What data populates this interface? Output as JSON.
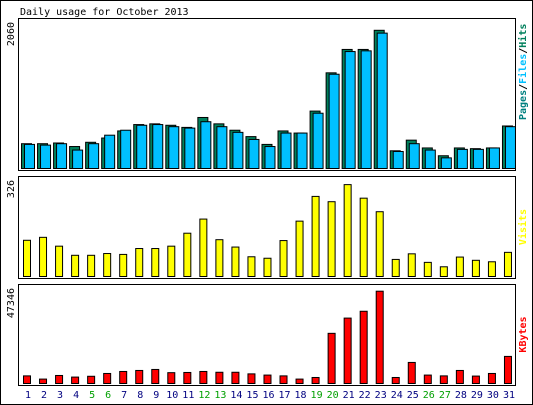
{
  "chart_data": [
    {
      "type": "bar",
      "title": "Daily usage for October 2013",
      "categories": [
        "1",
        "2",
        "3",
        "4",
        "5",
        "6",
        "7",
        "8",
        "9",
        "10",
        "11",
        "12",
        "13",
        "14",
        "15",
        "16",
        "17",
        "18",
        "19",
        "20",
        "21",
        "22",
        "23",
        "24",
        "25",
        "26",
        "27",
        "28",
        "29",
        "30",
        "31"
      ],
      "weekend_days": [
        "5",
        "6",
        "12",
        "13",
        "19",
        "20",
        "26",
        "27"
      ],
      "ymax_label": "2060",
      "ylim": [
        0,
        2060
      ],
      "right_label_parts": [
        "Pages",
        "/",
        "Files",
        "/",
        "Hits"
      ],
      "series": [
        {
          "name": "Hits",
          "color": "#00805c",
          "values": [
            350,
            350,
            360,
            310,
            370,
            430,
            530,
            620,
            630,
            610,
            580,
            720,
            630,
            540,
            450,
            340,
            530,
            500,
            810,
            1350,
            1680,
            1680,
            1950,
            250,
            400,
            290,
            180,
            290,
            280,
            290,
            600
          ]
        },
        {
          "name": "Files",
          "color": "#00c0ff",
          "values": [
            340,
            330,
            350,
            260,
            350,
            470,
            540,
            610,
            620,
            590,
            570,
            660,
            590,
            510,
            410,
            310,
            500,
            500,
            780,
            1330,
            1650,
            1660,
            1910,
            240,
            350,
            260,
            150,
            270,
            270,
            290,
            590
          ]
        }
      ]
    },
    {
      "type": "bar",
      "categories": [
        "1",
        "2",
        "3",
        "4",
        "5",
        "6",
        "7",
        "8",
        "9",
        "10",
        "11",
        "12",
        "13",
        "14",
        "15",
        "16",
        "17",
        "18",
        "19",
        "20",
        "21",
        "22",
        "23",
        "24",
        "25",
        "26",
        "27",
        "28",
        "29",
        "30",
        "31"
      ],
      "ymax_label": "326",
      "ylim": [
        0,
        326
      ],
      "right_label": "Visits",
      "series": [
        {
          "name": "Visits",
          "color": "#ffff00",
          "values": [
            123,
            133,
            103,
            72,
            72,
            78,
            75,
            95,
            95,
            103,
            147,
            195,
            125,
            100,
            67,
            62,
            122,
            188,
            272,
            254,
            312,
            266,
            220,
            58,
            77,
            48,
            33,
            66,
            55,
            50,
            82
          ]
        }
      ]
    },
    {
      "type": "bar",
      "categories": [
        "1",
        "2",
        "3",
        "4",
        "5",
        "6",
        "7",
        "8",
        "9",
        "10",
        "11",
        "12",
        "13",
        "14",
        "15",
        "16",
        "17",
        "18",
        "19",
        "20",
        "21",
        "22",
        "23",
        "24",
        "25",
        "26",
        "27",
        "28",
        "29",
        "30",
        "31"
      ],
      "ymax_label": "47346",
      "ylim": [
        0,
        47346
      ],
      "right_label": "KBytes",
      "series": [
        {
          "name": "KBytes",
          "color": "#ff0000",
          "values": [
            3800,
            2200,
            4000,
            3200,
            3600,
            5000,
            6000,
            6500,
            7000,
            5400,
            5500,
            6000,
            5600,
            5600,
            4800,
            4200,
            3800,
            2200,
            3000,
            25000,
            32600,
            36000,
            46000,
            3000,
            10500,
            4200,
            3800,
            6500,
            3700,
            5000,
            13500
          ]
        }
      ]
    }
  ],
  "colors": {
    "background": "#ffffff",
    "frame": "#000000",
    "weekday_label": "#000080",
    "weekend_label": "#00a000",
    "pages_label": "#008080",
    "hits_label": "#00805c",
    "files_label": "#00c0ff",
    "visits_label": "#ffff00",
    "kbytes_label": "#ff0000"
  }
}
